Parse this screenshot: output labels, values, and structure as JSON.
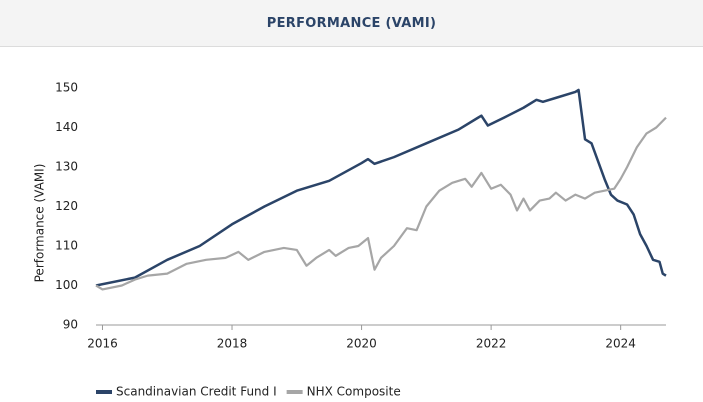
{
  "chart_data": {
    "type": "line",
    "title": "PERFORMANCE (VAMI)",
    "ylabel": "Performance (VAMI)",
    "xlim": [
      2015.9,
      2024.7
    ],
    "xticks": [
      2016,
      2018,
      2020,
      2022,
      2024
    ],
    "ylim": [
      90,
      150
    ],
    "yticks": [
      90,
      100,
      110,
      120,
      130,
      140,
      150
    ],
    "grid": false,
    "legend": "bottom-left",
    "series": [
      {
        "name": "Scandinavian Credit Fund I",
        "color": "#2b4468",
        "x": [
          2015.9,
          2016.5,
          2017,
          2017.5,
          2018,
          2018.5,
          2019,
          2019.5,
          2020,
          2020.1,
          2020.2,
          2020.5,
          2021,
          2021.5,
          2021.8,
          2021.85,
          2021.95,
          2022.2,
          2022.5,
          2022.7,
          2022.8,
          2023,
          2023.3,
          2023.35,
          2023.45,
          2023.55,
          2023.75,
          2023.85,
          2023.95,
          2024.1,
          2024.2,
          2024.3,
          2024.4,
          2024.5,
          2024.6,
          2024.65,
          2024.7
        ],
        "values": [
          100,
          102,
          106.5,
          110,
          115.5,
          120,
          124,
          126.5,
          131,
          132,
          130.8,
          132.5,
          136,
          139.5,
          142.5,
          143,
          140.5,
          142.5,
          145,
          147,
          146.5,
          147.5,
          149,
          149.5,
          137,
          136,
          127,
          123,
          121.5,
          120.5,
          118,
          113,
          110,
          106.5,
          106,
          103,
          102.5
        ]
      },
      {
        "name": "NHX Composite",
        "color": "#a6a6a6",
        "x": [
          2015.9,
          2016,
          2016.3,
          2016.5,
          2016.7,
          2017,
          2017.3,
          2017.6,
          2017.9,
          2018.1,
          2018.25,
          2018.5,
          2018.8,
          2019,
          2019.15,
          2019.3,
          2019.5,
          2019.6,
          2019.8,
          2019.95,
          2020.1,
          2020.2,
          2020.3,
          2020.5,
          2020.7,
          2020.85,
          2021,
          2021.2,
          2021.4,
          2021.6,
          2021.7,
          2021.85,
          2022,
          2022.15,
          2022.3,
          2022.4,
          2022.5,
          2022.6,
          2022.75,
          2022.9,
          2023,
          2023.15,
          2023.3,
          2023.45,
          2023.6,
          2023.9,
          2024,
          2024.1,
          2024.25,
          2024.4,
          2024.55,
          2024.7
        ],
        "values": [
          100,
          99,
          100,
          101.5,
          102.5,
          103,
          105.5,
          106.5,
          107,
          108.5,
          106.5,
          108.5,
          109.5,
          109,
          105,
          107,
          109,
          107.5,
          109.5,
          110,
          112,
          104,
          107,
          110,
          114.5,
          114,
          120,
          124,
          126,
          127,
          125,
          128.5,
          124.5,
          125.5,
          123,
          119,
          122,
          119,
          121.5,
          122,
          123.5,
          121.5,
          123,
          122,
          123.5,
          124.5,
          127,
          130,
          135,
          138.5,
          140,
          142.5
        ]
      }
    ]
  }
}
